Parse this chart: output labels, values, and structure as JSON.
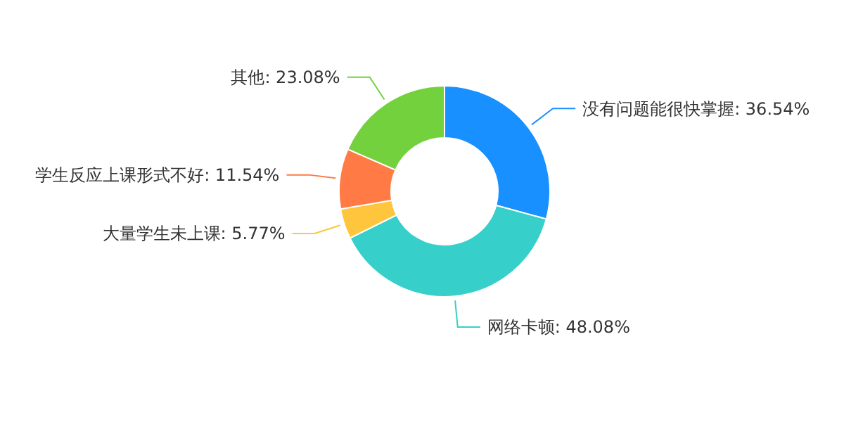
{
  "chart_data": {
    "type": "donut",
    "categories": [
      "没有问题能很快掌握",
      "网络卡顿",
      "大量学生未上课",
      "学生反应上课形式不好",
      "其他"
    ],
    "values": [
      36.54,
      48.08,
      5.77,
      11.54,
      23.08
    ],
    "value_labels": [
      "36.54%",
      "48.08%",
      "5.77%",
      "11.54%",
      "23.08%"
    ],
    "colors": [
      "#1890ff",
      "#36cfc9",
      "#ffc53d",
      "#ff7a45",
      "#73d13d"
    ]
  }
}
